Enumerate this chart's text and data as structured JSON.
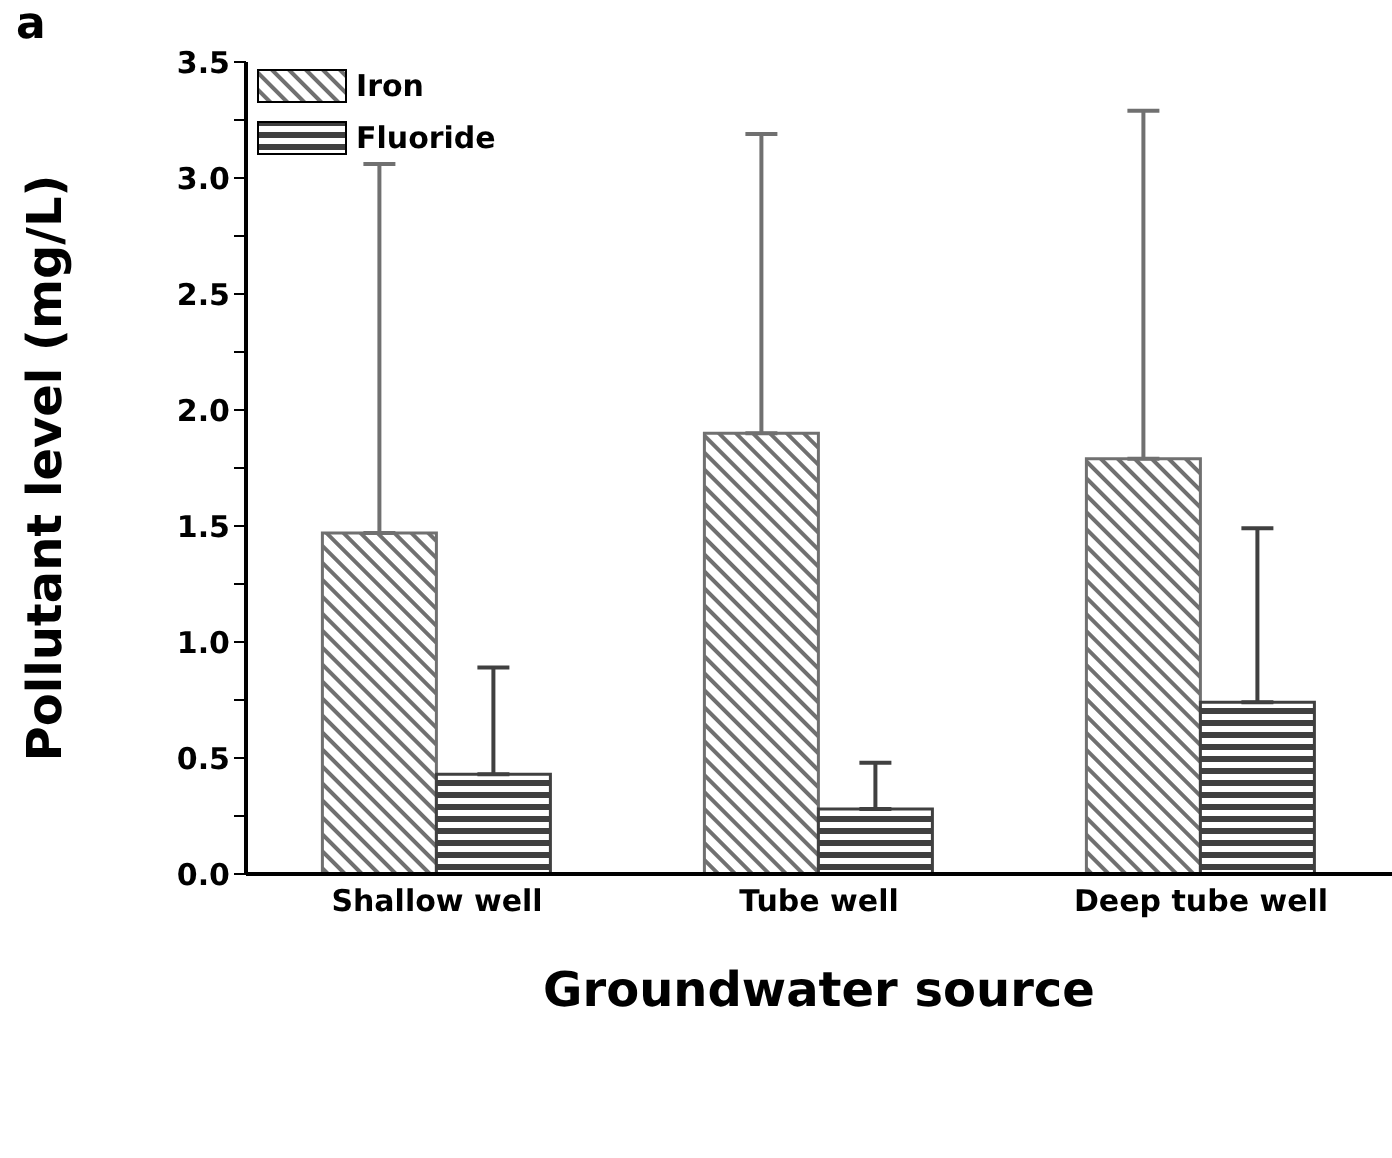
{
  "chart_data": {
    "type": "bar",
    "xlabel": "Groundwater source",
    "ylabel": "Pollutant level (mg/L)",
    "annotations": [
      "a"
    ],
    "categories": [
      "Shallow well",
      "Tube well",
      "Deep tube well"
    ],
    "series": [
      {
        "name": "Iron",
        "color": "#707070",
        "values": [
          1.47,
          1.9,
          1.79
        ],
        "errors": [
          [
            1.47,
            3.06
          ],
          [
            1.9,
            3.19
          ],
          [
            1.79,
            3.29
          ]
        ]
      },
      {
        "name": "Fluoride",
        "color": "#404040",
        "values": [
          0.43,
          0.28,
          0.74
        ],
        "errors": [
          [
            0.43,
            0.89
          ],
          [
            0.28,
            0.48
          ],
          [
            0.74,
            1.49
          ]
        ]
      }
    ],
    "ylim": [
      0,
      3.5
    ],
    "yticks": [
      {
        "value": 0,
        "label": "0.0"
      },
      {
        "value": 0.25,
        "label": null
      },
      0.5,
      {
        "value": 0.75,
        "label": null
      },
      {
        "value": 1,
        "label": "1.0"
      },
      {
        "value": 1.25,
        "label": null
      },
      1.5,
      {
        "value": 1.75,
        "label": null
      },
      {
        "value": 2,
        "label": "2.0"
      },
      {
        "value": 2.25,
        "label": null
      },
      2.5,
      {
        "value": 2.75,
        "label": null
      },
      {
        "value": 3,
        "label": "3.0"
      },
      {
        "value": 3.25,
        "label": null
      },
      3.5
    ],
    "legend": "top left",
    "grid": false
  }
}
